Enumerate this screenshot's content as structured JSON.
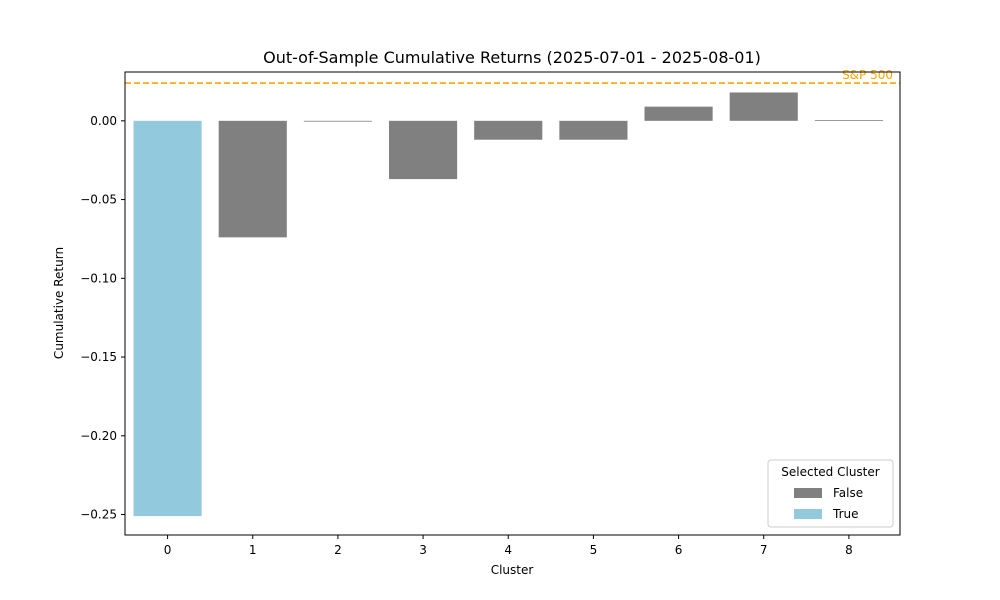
{
  "chart_data": {
    "type": "bar",
    "title": "Out-of-Sample Cumulative Returns (2025-07-01 - 2025-08-01)",
    "xlabel": "Cluster",
    "ylabel": "Cumulative Return",
    "categories": [
      "0",
      "1",
      "2",
      "3",
      "4",
      "5",
      "6",
      "7",
      "8"
    ],
    "values": [
      -0.251,
      -0.074,
      0.0,
      -0.037,
      -0.012,
      -0.012,
      0.009,
      0.018,
      0.0005
    ],
    "selected": [
      true,
      false,
      false,
      false,
      false,
      false,
      false,
      false,
      false
    ],
    "ylim": [
      -0.263,
      0.031
    ],
    "yticks": [
      0.0,
      -0.05,
      -0.1,
      -0.15,
      -0.2,
      -0.25
    ],
    "ytick_labels": [
      "0.00",
      "−0.05",
      "−0.10",
      "−0.15",
      "−0.20",
      "−0.25"
    ],
    "reference_line": {
      "label": "S&P 500",
      "value": 0.024,
      "color": "#ffa500",
      "style": "dashed"
    },
    "legend": {
      "title": "Selected Cluster",
      "placement": "lower-right",
      "entries": [
        {
          "label": "False",
          "color": "#808080"
        },
        {
          "label": "True",
          "color": "#92c9dd"
        }
      ]
    },
    "grid": false
  }
}
